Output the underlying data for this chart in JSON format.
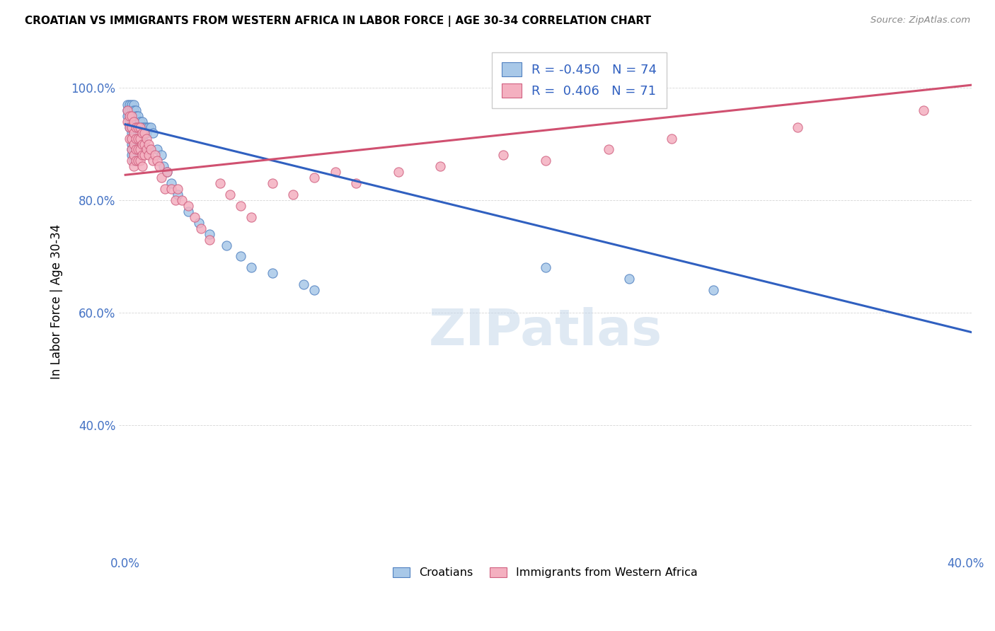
{
  "title": "CROATIAN VS IMMIGRANTS FROM WESTERN AFRICA IN LABOR FORCE | AGE 30-34 CORRELATION CHART",
  "source": "Source: ZipAtlas.com",
  "ylabel": "In Labor Force | Age 30-34",
  "xlim": [
    -0.003,
    0.403
  ],
  "ylim": [
    0.17,
    1.07
  ],
  "blue_R": -0.45,
  "blue_N": 74,
  "pink_R": 0.406,
  "pink_N": 71,
  "blue_scatter_color": "#a8c8e8",
  "blue_edge_color": "#5080c0",
  "pink_scatter_color": "#f4b0c0",
  "pink_edge_color": "#d06080",
  "blue_line_color": "#3060c0",
  "pink_line_color": "#d05070",
  "blue_line": [
    0.0,
    0.935,
    0.403,
    0.565
  ],
  "pink_line": [
    0.0,
    0.845,
    0.403,
    1.005
  ],
  "blue_x": [
    0.001,
    0.001,
    0.001,
    0.002,
    0.002,
    0.002,
    0.002,
    0.002,
    0.003,
    0.003,
    0.003,
    0.003,
    0.003,
    0.003,
    0.003,
    0.003,
    0.003,
    0.003,
    0.004,
    0.004,
    0.004,
    0.004,
    0.004,
    0.004,
    0.004,
    0.004,
    0.004,
    0.004,
    0.004,
    0.005,
    0.005,
    0.005,
    0.005,
    0.005,
    0.005,
    0.005,
    0.006,
    0.006,
    0.006,
    0.006,
    0.006,
    0.007,
    0.007,
    0.007,
    0.007,
    0.008,
    0.008,
    0.008,
    0.008,
    0.009,
    0.009,
    0.01,
    0.01,
    0.011,
    0.012,
    0.013,
    0.015,
    0.017,
    0.018,
    0.02,
    0.022,
    0.025,
    0.03,
    0.035,
    0.04,
    0.048,
    0.055,
    0.06,
    0.07,
    0.085,
    0.09,
    0.2,
    0.24,
    0.28
  ],
  "blue_y": [
    0.97,
    0.96,
    0.95,
    0.97,
    0.96,
    0.95,
    0.94,
    0.93,
    0.97,
    0.96,
    0.95,
    0.94,
    0.93,
    0.92,
    0.91,
    0.9,
    0.89,
    0.88,
    0.97,
    0.96,
    0.95,
    0.94,
    0.93,
    0.92,
    0.91,
    0.9,
    0.89,
    0.88,
    0.87,
    0.96,
    0.95,
    0.93,
    0.92,
    0.91,
    0.9,
    0.89,
    0.95,
    0.93,
    0.92,
    0.91,
    0.89,
    0.94,
    0.93,
    0.92,
    0.9,
    0.94,
    0.93,
    0.91,
    0.9,
    0.93,
    0.92,
    0.93,
    0.92,
    0.93,
    0.93,
    0.92,
    0.89,
    0.88,
    0.86,
    0.85,
    0.83,
    0.81,
    0.78,
    0.76,
    0.74,
    0.72,
    0.7,
    0.68,
    0.67,
    0.65,
    0.64,
    0.68,
    0.66,
    0.64
  ],
  "pink_x": [
    0.001,
    0.001,
    0.002,
    0.002,
    0.002,
    0.003,
    0.003,
    0.003,
    0.003,
    0.003,
    0.004,
    0.004,
    0.004,
    0.004,
    0.004,
    0.005,
    0.005,
    0.005,
    0.005,
    0.006,
    0.006,
    0.006,
    0.006,
    0.007,
    0.007,
    0.007,
    0.007,
    0.008,
    0.008,
    0.008,
    0.008,
    0.009,
    0.009,
    0.009,
    0.01,
    0.01,
    0.011,
    0.011,
    0.012,
    0.013,
    0.014,
    0.015,
    0.016,
    0.017,
    0.019,
    0.02,
    0.022,
    0.024,
    0.025,
    0.027,
    0.03,
    0.033,
    0.036,
    0.04,
    0.045,
    0.05,
    0.055,
    0.06,
    0.07,
    0.08,
    0.09,
    0.1,
    0.11,
    0.13,
    0.15,
    0.18,
    0.2,
    0.23,
    0.26,
    0.32,
    0.38
  ],
  "pink_y": [
    0.96,
    0.94,
    0.95,
    0.93,
    0.91,
    0.95,
    0.93,
    0.91,
    0.89,
    0.87,
    0.94,
    0.92,
    0.9,
    0.88,
    0.86,
    0.93,
    0.91,
    0.89,
    0.87,
    0.93,
    0.91,
    0.89,
    0.87,
    0.93,
    0.91,
    0.89,
    0.87,
    0.92,
    0.9,
    0.88,
    0.86,
    0.92,
    0.9,
    0.88,
    0.91,
    0.89,
    0.9,
    0.88,
    0.89,
    0.87,
    0.88,
    0.87,
    0.86,
    0.84,
    0.82,
    0.85,
    0.82,
    0.8,
    0.82,
    0.8,
    0.79,
    0.77,
    0.75,
    0.73,
    0.83,
    0.81,
    0.79,
    0.77,
    0.83,
    0.81,
    0.84,
    0.85,
    0.83,
    0.85,
    0.86,
    0.88,
    0.87,
    0.89,
    0.91,
    0.93,
    0.96
  ],
  "watermark_text": "ZIPatlas",
  "legend1_label": "Croatians",
  "legend2_label": "Immigrants from Western Africa"
}
